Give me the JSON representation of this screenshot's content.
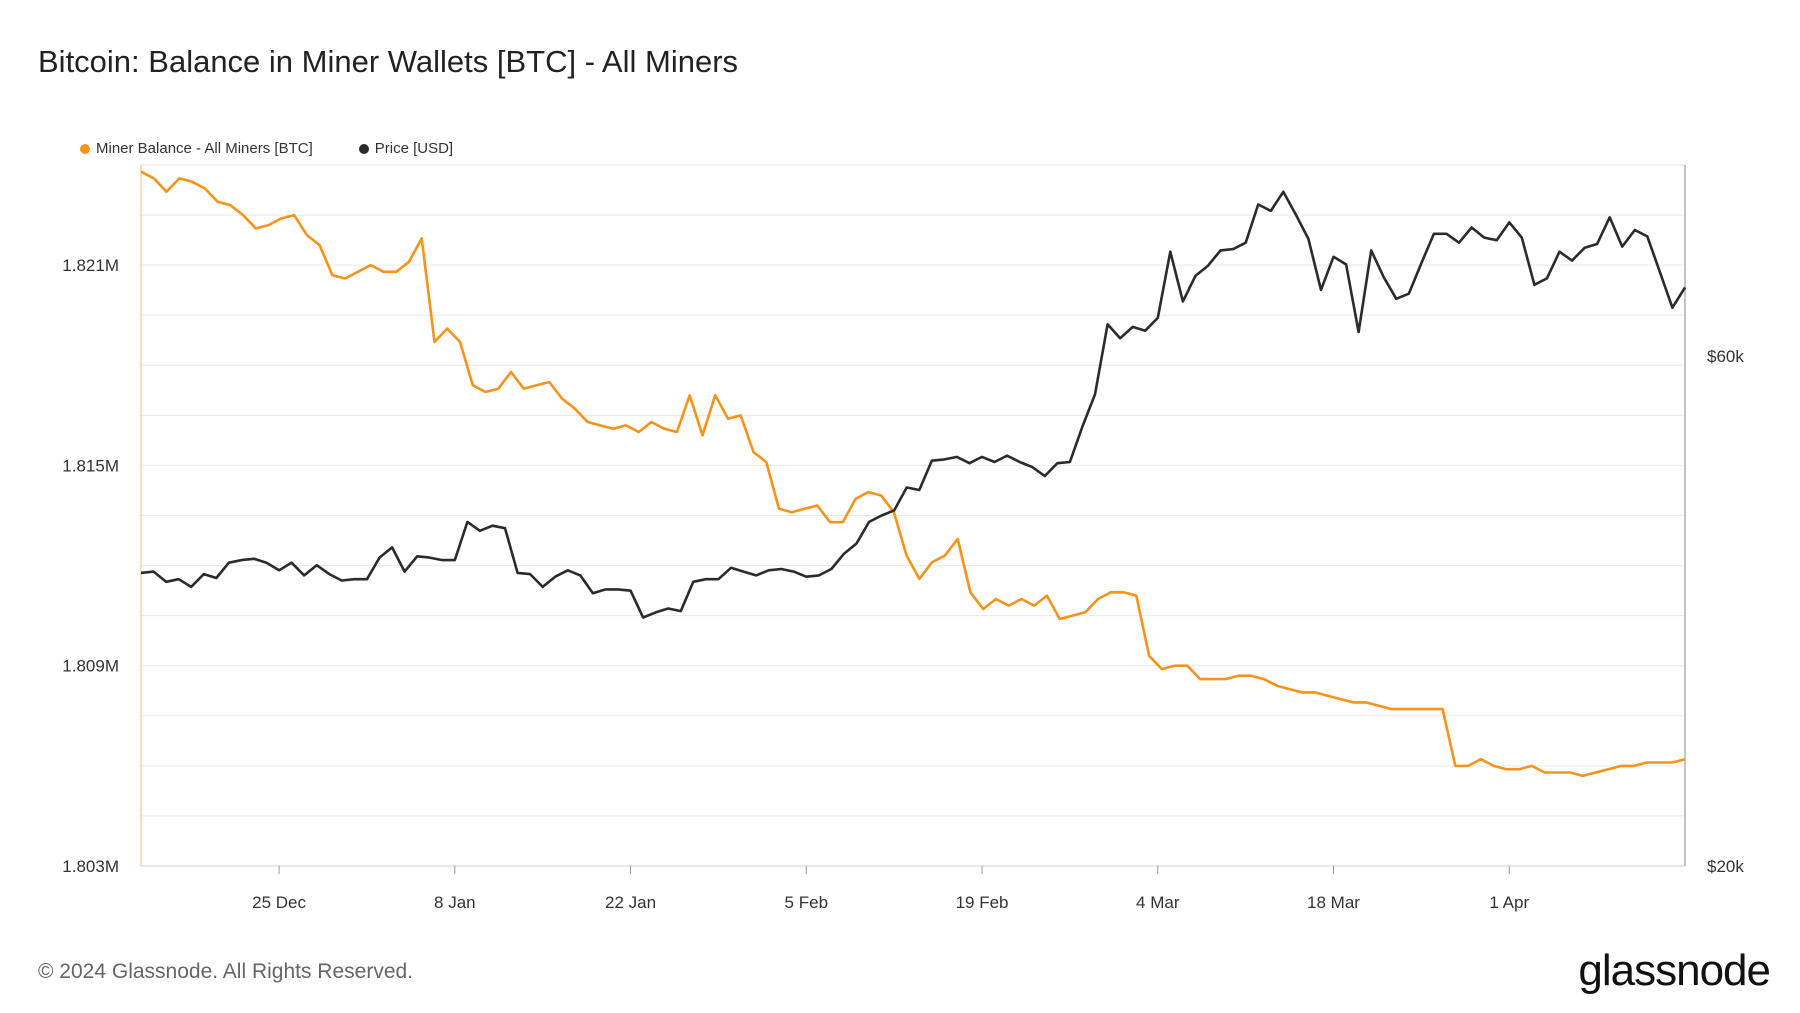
{
  "header": {
    "title": "Bitcoin: Balance in Miner Wallets [BTC] - All Miners"
  },
  "footer": {
    "copyright": "© 2024 Glassnode. All Rights Reserved.",
    "logo": "glassnode"
  },
  "colors": {
    "balance": "#f7931a",
    "price": "#2b2b2b",
    "grid": "#e9e9e9"
  },
  "chart_data": {
    "type": "line",
    "title": "Bitcoin: Balance in Miner Wallets [BTC] - All Miners",
    "legend_placement": "top-left",
    "grid": true,
    "x_ticks": [
      "25 Dec",
      "8 Jan",
      "22 Jan",
      "5 Feb",
      "19 Feb",
      "4 Mar",
      "18 Mar",
      "1 Apr"
    ],
    "x_range": [
      "2023-12-14",
      "2024-04-15"
    ],
    "y_left": {
      "ticks": [
        "1.803M",
        "1.809M",
        "1.815M",
        "1.821M"
      ],
      "range": [
        1.803,
        1.824
      ],
      "unit": "M BTC"
    },
    "y_right": {
      "ticks": [
        "$20k",
        "$60k"
      ],
      "range": [
        20,
        75
      ],
      "unit": "k USD",
      "scale": "linear"
    },
    "series": [
      {
        "name": "Miner Balance - All Miners [BTC]",
        "axis": "left",
        "values": [
          1.8238,
          1.8236,
          1.8232,
          1.8236,
          1.8235,
          1.8233,
          1.8229,
          1.8228,
          1.8225,
          1.8221,
          1.8222,
          1.8224,
          1.8225,
          1.8219,
          1.8216,
          1.8207,
          1.8206,
          1.8208,
          1.821,
          1.8208,
          1.8208,
          1.8211,
          1.8218,
          1.8187,
          1.8191,
          1.8187,
          1.8174,
          1.8172,
          1.8173,
          1.8178,
          1.8173,
          1.8174,
          1.8175,
          1.817,
          1.8167,
          1.8163,
          1.8162,
          1.8161,
          1.8162,
          1.816,
          1.8163,
          1.8161,
          1.816,
          1.8171,
          1.8159,
          1.8171,
          1.8164,
          1.8165,
          1.8154,
          1.8151,
          1.8137,
          1.8136,
          1.8137,
          1.8138,
          1.8133,
          1.8133,
          1.814,
          1.8142,
          1.8141,
          1.8136,
          1.8123,
          1.8116,
          1.8121,
          1.8123,
          1.8128,
          1.8112,
          1.8107,
          1.811,
          1.8108,
          1.811,
          1.8108,
          1.8111,
          1.8104,
          1.8105,
          1.8106,
          1.811,
          1.8112,
          1.8112,
          1.8111,
          1.8093,
          1.8089,
          1.809,
          1.809,
          1.8086,
          1.8086,
          1.8086,
          1.8087,
          1.8087,
          1.8086,
          1.8084,
          1.8083,
          1.8082,
          1.8082,
          1.8081,
          1.808,
          1.8079,
          1.8079,
          1.8078,
          1.8077,
          1.8077,
          1.8077,
          1.8077,
          1.8077,
          1.806,
          1.806,
          1.8062,
          1.806,
          1.8059,
          1.8059,
          1.806,
          1.8058,
          1.8058,
          1.8058,
          1.8057,
          1.8058,
          1.8059,
          1.806,
          1.806,
          1.8061,
          1.8061,
          1.8061,
          1.8062
        ]
      },
      {
        "name": "Price [USD]",
        "axis": "right",
        "values": [
          43.0,
          43.1,
          42.3,
          42.5,
          41.9,
          42.9,
          42.6,
          43.8,
          44.0,
          44.1,
          43.8,
          43.2,
          43.8,
          42.8,
          43.6,
          42.9,
          42.4,
          42.5,
          42.5,
          44.2,
          45.0,
          43.1,
          44.3,
          44.2,
          44.0,
          44.0,
          47.0,
          46.3,
          46.7,
          46.5,
          43.0,
          42.9,
          41.9,
          42.7,
          43.2,
          42.8,
          41.4,
          41.7,
          41.7,
          41.6,
          39.5,
          39.9,
          40.2,
          40.0,
          42.3,
          42.5,
          42.5,
          43.4,
          43.1,
          42.8,
          43.2,
          43.3,
          43.1,
          42.7,
          42.8,
          43.3,
          44.5,
          45.3,
          47.0,
          47.5,
          47.9,
          49.7,
          49.5,
          51.8,
          51.9,
          52.1,
          51.6,
          52.1,
          51.7,
          52.2,
          51.7,
          51.3,
          50.6,
          51.6,
          51.7,
          54.5,
          57.0,
          62.5,
          61.4,
          62.3,
          62.0,
          63.0,
          68.2,
          64.3,
          66.3,
          67.1,
          68.3,
          68.4,
          68.9,
          71.9,
          71.4,
          72.9,
          71.1,
          69.2,
          65.2,
          67.8,
          67.2,
          61.9,
          68.3,
          66.2,
          64.5,
          64.9,
          67.3,
          69.6,
          69.6,
          68.9,
          70.1,
          69.3,
          69.1,
          70.5,
          69.3,
          65.6,
          66.1,
          68.2,
          67.5,
          68.5,
          68.8,
          70.9,
          68.6,
          69.9,
          69.4,
          66.6,
          63.8,
          65.4
        ]
      }
    ]
  }
}
